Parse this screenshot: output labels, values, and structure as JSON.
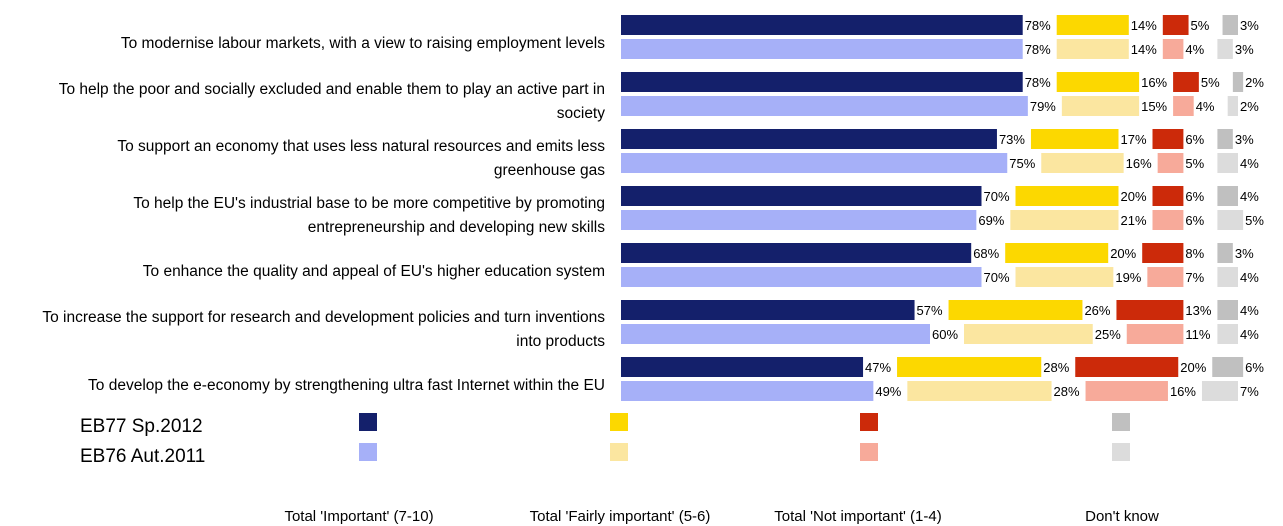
{
  "chart_data": {
    "type": "bar",
    "orientation": "horizontal",
    "stacked": true,
    "categories": [
      "To modernise labour markets, with a view to raising employment levels",
      "To help the poor and socially excluded and enable them to play an active part in society",
      "To support an economy that uses less natural resources and emits less greenhouse gas",
      "To help the EU's industrial base to be more competitive by promoting entrepreneurship and developing new skills",
      "To enhance the quality and appeal of EU's higher education system",
      "To increase the support for research and development policies and turn inventions into products",
      "To develop the e-economy by strengthening ultra fast Internet within the EU"
    ],
    "category_lines": [
      [
        "To modernise labour markets, with a view to raising employment levels"
      ],
      [
        "To help the poor and socially excluded and enable them to play an active part in",
        "society"
      ],
      [
        "To support an economy that uses less natural resources and emits less",
        "greenhouse gas"
      ],
      [
        "To help the EU's industrial base to be more competitive by promoting",
        "entrepreneurship and developing new skills"
      ],
      [
        "To enhance the quality and appeal of EU's higher education system"
      ],
      [
        "To increase the support for research and development policies and turn inventions",
        "into products"
      ],
      [
        "To develop the e-economy by strengthening ultra fast Internet within the EU"
      ]
    ],
    "surveys": [
      "EB77 Sp.2012",
      "EB76 Aut.2011"
    ],
    "answers": [
      "Total 'Important' (7-10)",
      "Total 'Fairly important' (5-6)",
      "Total 'Not important' (1-4)",
      "Don't know"
    ],
    "colors": [
      [
        "#14206b",
        "#fcd800",
        "#cc2a0a",
        "#c0c0c0"
      ],
      [
        "#a6b0f8",
        "#fbe6a0",
        "#f7aa9a",
        "#dcdcdc"
      ]
    ],
    "series": [
      {
        "name": "EB77 Sp.2012",
        "values": [
          [
            78,
            14,
            5,
            3
          ],
          [
            78,
            16,
            5,
            2
          ],
          [
            73,
            17,
            6,
            3
          ],
          [
            70,
            20,
            6,
            4
          ],
          [
            68,
            20,
            8,
            3
          ],
          [
            57,
            26,
            13,
            4
          ],
          [
            47,
            28,
            20,
            6
          ]
        ]
      },
      {
        "name": "EB76 Aut.2011",
        "values": [
          [
            78,
            14,
            4,
            3
          ],
          [
            79,
            15,
            4,
            2
          ],
          [
            75,
            16,
            5,
            4
          ],
          [
            69,
            21,
            6,
            5
          ],
          [
            70,
            19,
            7,
            4
          ],
          [
            60,
            25,
            11,
            4
          ],
          [
            49,
            28,
            16,
            7
          ]
        ]
      }
    ],
    "value_suffix": "%"
  }
}
